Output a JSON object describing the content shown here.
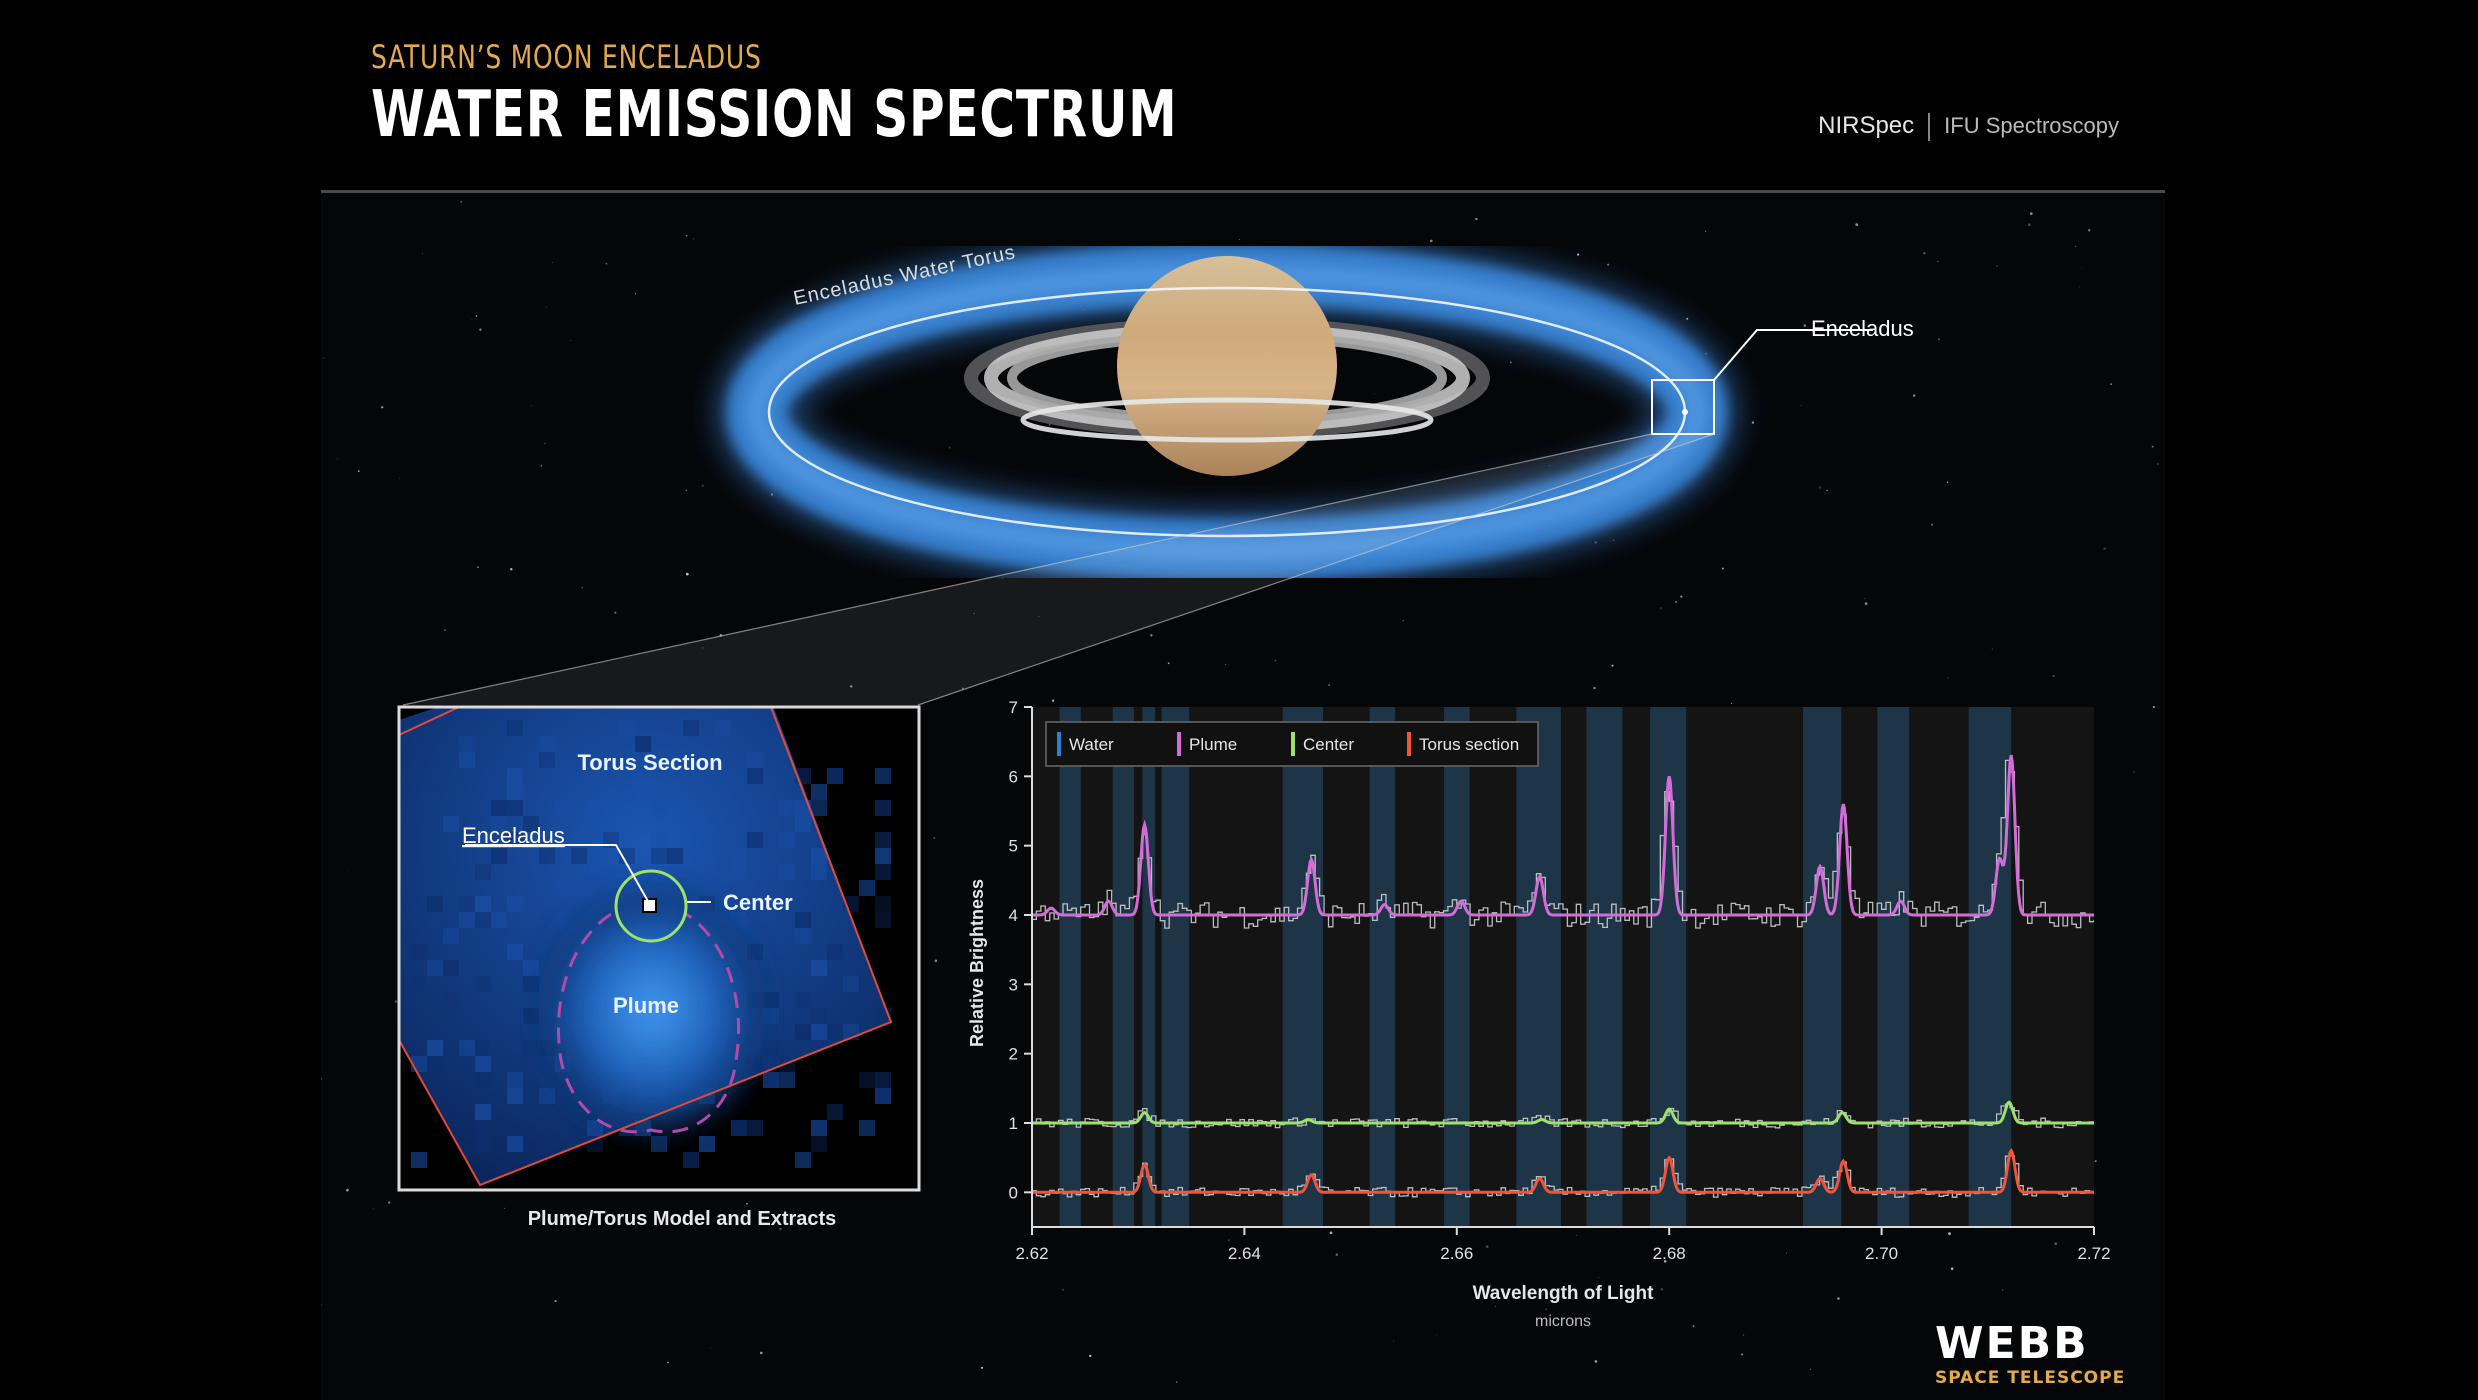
{
  "header": {
    "subtitle": "SATURN’S MOON ENCELADUS",
    "title": "WATER EMISSION SPECTRUM",
    "instrument": "NIRSpec",
    "mode": "IFU Spectroscopy"
  },
  "overview": {
    "torus_label": "Enceladus Water Torus",
    "moon_label": "Enceladus"
  },
  "model_panel": {
    "torus_label": "Torus Section",
    "moon_label": "Enceladus",
    "center_label": "Center",
    "plume_label": "Plume",
    "caption": "Plume/Torus Model and Extracts"
  },
  "logo": {
    "name": "WEBB",
    "sub": "SPACE TELESCOPE"
  },
  "colors": {
    "water": "#2f7fd1",
    "plume": "#d46cd8",
    "center": "#9ee26a",
    "torus": "#f0553a",
    "title_accent": "#e3a94c"
  },
  "chart_data": {
    "type": "line",
    "xlabel": "Wavelength of Light",
    "xunit": "microns",
    "ylabel": "Relative Brightness",
    "xlim": [
      2.62,
      2.72
    ],
    "ylim": [
      -0.5,
      7
    ],
    "xticks": [
      "2.62",
      "2.64",
      "2.66",
      "2.68",
      "2.70",
      "2.72"
    ],
    "yticks": [
      "0",
      "1",
      "2",
      "3",
      "4",
      "5",
      "6",
      "7"
    ],
    "legend": [
      "Water",
      "Plume",
      "Center",
      "Torus section"
    ],
    "legend_position": "top-left",
    "water_bands": [
      [
        2.6226,
        2.6246
      ],
      [
        2.6276,
        2.6296
      ],
      [
        2.6304,
        2.6316
      ],
      [
        2.6322,
        2.6348
      ],
      [
        2.6436,
        2.6474
      ],
      [
        2.6518,
        2.6542
      ],
      [
        2.6588,
        2.6612
      ],
      [
        2.6656,
        2.6698
      ],
      [
        2.6722,
        2.6756
      ],
      [
        2.6782,
        2.6816
      ],
      [
        2.6926,
        2.6962
      ],
      [
        2.6996,
        2.7026
      ],
      [
        2.7082,
        2.7122
      ]
    ],
    "series": [
      {
        "name": "Plume",
        "baseline": 4,
        "peaks": [
          [
            2.6306,
            1.3
          ],
          [
            2.6463,
            0.8
          ],
          [
            2.6678,
            0.55
          ],
          [
            2.68,
            2.0
          ],
          [
            2.6942,
            0.7
          ],
          [
            2.6964,
            1.6
          ],
          [
            2.7111,
            0.8
          ],
          [
            2.7122,
            2.3
          ],
          [
            2.6218,
            0.1
          ],
          [
            2.6272,
            0.2
          ],
          [
            2.6532,
            0.15
          ],
          [
            2.6604,
            0.2
          ],
          [
            2.7018,
            0.2
          ]
        ]
      },
      {
        "name": "Center",
        "baseline": 1,
        "peaks": [
          [
            2.6306,
            0.15
          ],
          [
            2.646,
            0.05
          ],
          [
            2.668,
            0.05
          ],
          [
            2.68,
            0.2
          ],
          [
            2.6963,
            0.15
          ],
          [
            2.712,
            0.3
          ]
        ]
      },
      {
        "name": "Torus section",
        "baseline": 0,
        "peaks": [
          [
            2.6306,
            0.4
          ],
          [
            2.6463,
            0.25
          ],
          [
            2.6678,
            0.2
          ],
          [
            2.68,
            0.5
          ],
          [
            2.6942,
            0.2
          ],
          [
            2.6964,
            0.45
          ],
          [
            2.7122,
            0.6
          ]
        ]
      }
    ]
  }
}
